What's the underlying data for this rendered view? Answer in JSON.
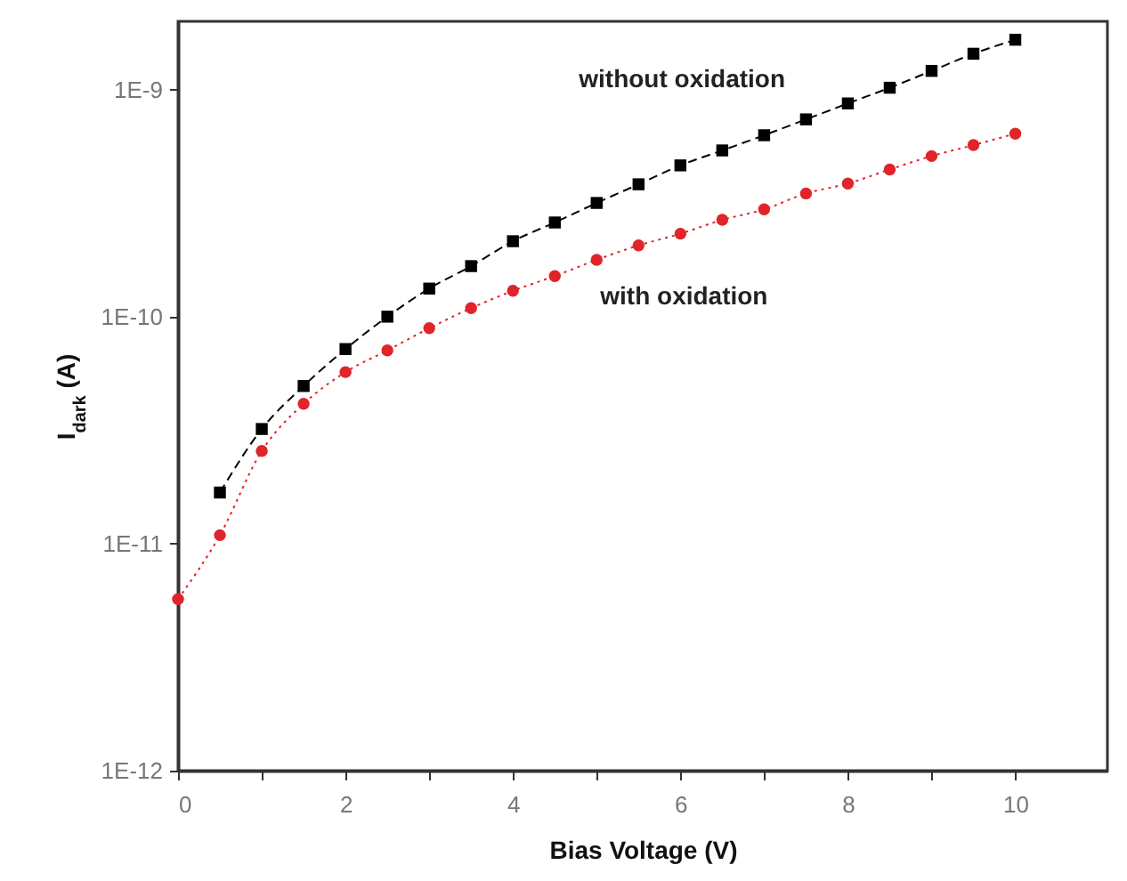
{
  "chart_data": {
    "type": "line",
    "xlabel": "Bias Voltage (V)",
    "ylabel": "I$_{dark}$ (A)",
    "log": "y",
    "xlim": [
      0,
      11.1
    ],
    "ylim": [
      1e-12,
      2e-09
    ],
    "xticks": [
      0,
      {
        "value": 1,
        "label": null
      },
      2,
      {
        "value": 3,
        "label": null
      },
      4,
      {
        "value": 5,
        "label": null
      },
      6,
      {
        "value": 7,
        "label": null
      },
      8,
      {
        "value": 9,
        "label": null
      },
      10
    ],
    "yticks": [
      {
        "value": 1e-12,
        "label": "1E-12"
      },
      {
        "value": 1e-11,
        "label": "1E-11"
      },
      {
        "value": 1e-10,
        "label": "1E-10"
      },
      {
        "value": 1e-09,
        "label": "1E-9"
      }
    ],
    "grid": false,
    "legend": false,
    "line_style": "dashed",
    "series": [
      {
        "name": "without oxidation",
        "color": "#000000",
        "marker": "square",
        "x": [
          0.5,
          1,
          1.5,
          2,
          2.5,
          3,
          3.5,
          4,
          4.5,
          5,
          5.5,
          6,
          6.5,
          7,
          7.5,
          8,
          8.5,
          9,
          9.5,
          10
        ],
        "values": [
          1.68e-11,
          3.2e-11,
          4.95e-11,
          7.2e-11,
          1e-10,
          1.33e-10,
          1.67e-10,
          2.15e-10,
          2.6e-10,
          3.17e-10,
          3.83e-10,
          4.64e-10,
          5.4e-10,
          6.3e-10,
          7.4e-10,
          8.7e-10,
          1.02e-09,
          1.21e-09,
          1.44e-09,
          1.66e-09
        ]
      },
      {
        "name": "with oxidation",
        "color": "#e0242a",
        "marker": "circle",
        "line_style": "dotted",
        "x": [
          0,
          0.5,
          1,
          1.5,
          2,
          2.5,
          3,
          3.5,
          4,
          4.5,
          5,
          5.5,
          6,
          6.5,
          7,
          7.5,
          8,
          8.5,
          9,
          9.5,
          10
        ],
        "values": [
          5.7e-12,
          1.09e-11,
          2.56e-11,
          4.13e-11,
          5.7e-11,
          7.1e-11,
          8.9e-11,
          1.09e-10,
          1.3e-10,
          1.51e-10,
          1.78e-10,
          2.06e-10,
          2.32e-10,
          2.67e-10,
          2.97e-10,
          3.49e-10,
          3.86e-10,
          4.45e-10,
          5.1e-10,
          5.7e-10,
          6.4e-10
        ]
      }
    ]
  }
}
